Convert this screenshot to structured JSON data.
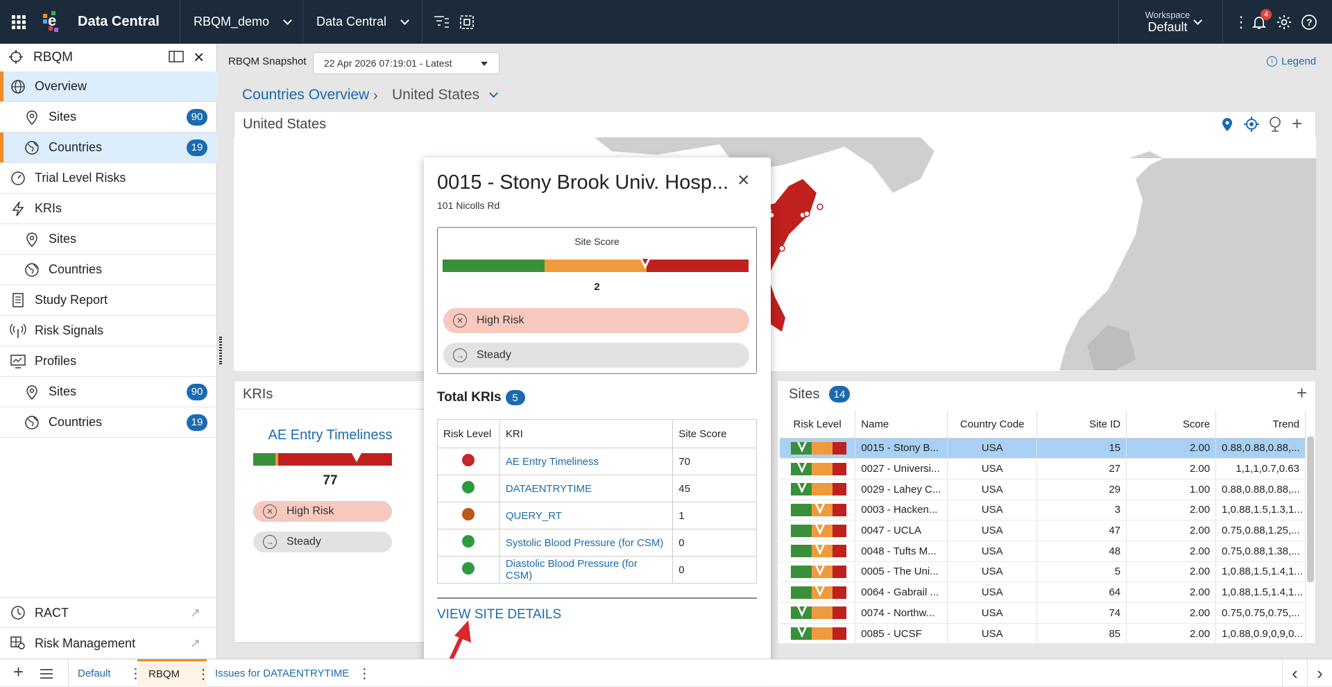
{
  "topbar": {
    "app_title": "Data Central",
    "study_dropdown": "RBQM_demo",
    "module_dropdown": "Data Central",
    "workspace_label": "Workspace",
    "workspace_value": "Default",
    "notification_count": "4"
  },
  "sidebar": {
    "title": "RBQM",
    "items": [
      {
        "label": "Overview"
      },
      {
        "label": "Sites",
        "count": "90"
      },
      {
        "label": "Countries",
        "count": "19"
      },
      {
        "label": "Trial Level Risks"
      },
      {
        "label": "KRIs"
      },
      {
        "label": "Sites"
      },
      {
        "label": "Countries"
      },
      {
        "label": "Study Report"
      },
      {
        "label": "Risk Signals"
      },
      {
        "label": "Profiles"
      },
      {
        "label": "Sites",
        "count": "90"
      },
      {
        "label": "Countries",
        "count": "19"
      }
    ],
    "footer_items": [
      {
        "label": "RACT"
      },
      {
        "label": "Risk Management"
      }
    ]
  },
  "header": {
    "snapshot_label": "RBQM Snapshot",
    "snapshot_value": "22 Apr 2026 07:19:01 - Latest",
    "legend": "Legend",
    "breadcrumb_root": "Countries Overview",
    "breadcrumb_current": "United States"
  },
  "map_panel": {
    "title": "United States"
  },
  "kri_panel": {
    "title": "KRIs",
    "card_title": "AE Entry Timeliness",
    "card_score": "77",
    "tag_risk": "High Risk",
    "tag_trend": "Steady"
  },
  "popup": {
    "title": "0015 - Stony Brook Univ. Hosp...",
    "address": "101 Nicolls Rd",
    "score_label": "Site Score",
    "score_value": "2",
    "tag_risk": "High Risk",
    "tag_trend": "Steady",
    "total_kris_label": "Total KRIs",
    "total_kris_count": "5",
    "columns": [
      "Risk Level",
      "KRI",
      "Site Score"
    ],
    "rows": [
      {
        "color": "#c0282a",
        "kri": "AE Entry Timeliness",
        "score": "70"
      },
      {
        "color": "#2e9a3e",
        "kri": "DATAENTRYTIME",
        "score": "45"
      },
      {
        "color": "#b85a1d",
        "kri": "QUERY_RT",
        "score": "1"
      },
      {
        "color": "#2e9a3e",
        "kri": "Systolic Blood Pressure (for CSM)",
        "score": "0"
      },
      {
        "color": "#2e9a3e",
        "kri": "Diastolic Blood Pressure (for CSM)",
        "score": "0"
      }
    ],
    "view_details": "VIEW SITE DETAILS"
  },
  "sites_panel": {
    "title": "Sites",
    "count": "14",
    "columns": [
      "Risk Level",
      "Name",
      "Country Code",
      "Site ID",
      "Score",
      "Trend"
    ],
    "rows": [
      {
        "level": "high",
        "name": "0015 - Stony B...",
        "country": "USA",
        "site_id": "15",
        "score": "2.00",
        "trend": "0.88,0.88,0.88,..."
      },
      {
        "level": "high",
        "name": "0027 - Universi...",
        "country": "USA",
        "site_id": "27",
        "score": "2.00",
        "trend": "1,1,1,0.7,0.63"
      },
      {
        "level": "high",
        "name": "0029 - Lahey C...",
        "country": "USA",
        "site_id": "29",
        "score": "1.00",
        "trend": "0.88,0.88,0.88,..."
      },
      {
        "level": "medium",
        "name": "0003 - Hacken...",
        "country": "USA",
        "site_id": "3",
        "score": "2.00",
        "trend": "1,0.88,1.5,1.3,1..."
      },
      {
        "level": "medium",
        "name": "0047 - UCLA",
        "country": "USA",
        "site_id": "47",
        "score": "2.00",
        "trend": "0.75,0.88,1.25,..."
      },
      {
        "level": "medium",
        "name": "0048 - Tufts M...",
        "country": "USA",
        "site_id": "48",
        "score": "2.00",
        "trend": "0.75,0.88,1.38,..."
      },
      {
        "level": "medium",
        "name": "0005 - The Uni...",
        "country": "USA",
        "site_id": "5",
        "score": "2.00",
        "trend": "1,0.88,1.5,1.4,1..."
      },
      {
        "level": "medium",
        "name": "0064 - Gabrail ...",
        "country": "USA",
        "site_id": "64",
        "score": "2.00",
        "trend": "1,0.88,1.5,1.4,1..."
      },
      {
        "level": "high",
        "name": "0074 - Northw...",
        "country": "USA",
        "site_id": "74",
        "score": "2.00",
        "trend": "0.75,0.75,0.75,..."
      },
      {
        "level": "high",
        "name": "0085 - UCSF",
        "country": "USA",
        "site_id": "85",
        "score": "2.00",
        "trend": "1,0.88,0.9,0,9,0..."
      }
    ]
  },
  "bottombar": {
    "tabs": [
      {
        "label": "Default"
      },
      {
        "label": "RBQM"
      },
      {
        "label": "Issues for DATAENTRYTIME"
      }
    ]
  },
  "colors": {
    "accent": "#1a6ab0",
    "topbar": "#1b2b3b",
    "high": "#c0282a",
    "medium": "#ef9a3c",
    "low": "#3a8f3a",
    "active_nav": "#dcedfb"
  }
}
